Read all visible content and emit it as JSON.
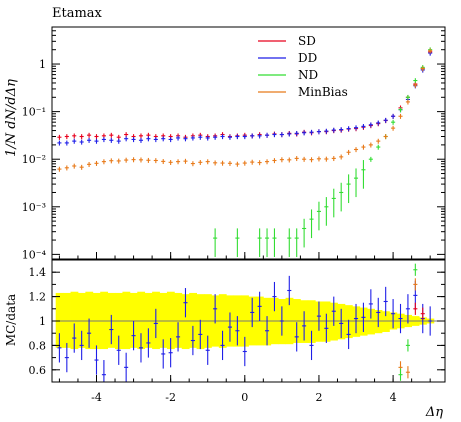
{
  "chart_data": {
    "type": "scatter",
    "title": "Etamax",
    "xlabel": "Δη",
    "ylabel": "1/N dN/dΔη",
    "ratio_ylabel": "MC/data",
    "xlim": [
      -5.2,
      5.4
    ],
    "ylim": [
      8e-05,
      6
    ],
    "yscale": "log",
    "ratio_ylim": [
      0.5,
      1.5
    ],
    "x_ticks": [
      -4,
      -2,
      0,
      2,
      4
    ],
    "y_ticks": [
      {
        "value": 0.0001,
        "label": "10⁻⁴"
      },
      {
        "value": 0.001,
        "label": "10⁻³"
      },
      {
        "value": 0.01,
        "label": "10⁻²"
      },
      {
        "value": 0.1,
        "label": "10⁻¹"
      },
      {
        "value": 1,
        "label": "1"
      }
    ],
    "ratio_ticks": [
      {
        "value": 0.6,
        "label": "0.6"
      },
      {
        "value": 0.8,
        "label": "0.8"
      },
      {
        "value": 1.0,
        "label": "1"
      },
      {
        "value": 1.2,
        "label": "1.2"
      },
      {
        "value": 1.4,
        "label": "1.4"
      }
    ],
    "legend_position": "top-right",
    "bin_width": 0.2,
    "x": [
      -5.0,
      -4.8,
      -4.6,
      -4.4,
      -4.2,
      -4.0,
      -3.8,
      -3.6,
      -3.4,
      -3.2,
      -3.0,
      -2.8,
      -2.6,
      -2.4,
      -2.2,
      -2.0,
      -1.8,
      -1.6,
      -1.4,
      -1.2,
      -1.0,
      -0.8,
      -0.6,
      -0.4,
      -0.2,
      0.0,
      0.2,
      0.4,
      0.6,
      0.8,
      1.0,
      1.2,
      1.4,
      1.6,
      1.8,
      2.0,
      2.2,
      2.4,
      2.6,
      2.8,
      3.0,
      3.2,
      3.4,
      3.6,
      3.8,
      4.0,
      4.2,
      4.4,
      4.6,
      4.8,
      5.0
    ],
    "series": [
      {
        "name": "SD",
        "color": "#e8001c",
        "values": [
          0.029,
          0.03,
          0.031,
          0.03,
          0.032,
          0.03,
          0.031,
          0.032,
          0.029,
          0.033,
          0.03,
          0.031,
          0.032,
          0.03,
          0.031,
          0.03,
          0.031,
          0.029,
          0.031,
          0.032,
          0.03,
          0.031,
          0.033,
          0.03,
          0.031,
          0.032,
          0.031,
          0.033,
          0.032,
          0.034,
          0.033,
          0.035,
          0.034,
          0.037,
          0.036,
          0.038,
          0.038,
          0.04,
          0.041,
          0.043,
          0.044,
          0.047,
          0.051,
          0.056,
          0.065,
          0.08,
          0.12,
          0.2,
          0.38,
          0.8,
          1.8
        ],
        "ratio": null
      },
      {
        "name": "DD",
        "color": "#1f1fe8",
        "values": [
          0.022,
          0.022,
          0.024,
          0.023,
          0.025,
          0.024,
          0.026,
          0.025,
          0.024,
          0.027,
          0.026,
          0.025,
          0.027,
          0.026,
          0.027,
          0.026,
          0.028,
          0.027,
          0.028,
          0.029,
          0.028,
          0.029,
          0.03,
          0.029,
          0.03,
          0.03,
          0.031,
          0.031,
          0.032,
          0.033,
          0.033,
          0.034,
          0.035,
          0.036,
          0.037,
          0.038,
          0.039,
          0.041,
          0.042,
          0.044,
          0.046,
          0.049,
          0.053,
          0.058,
          0.066,
          0.08,
          0.11,
          0.18,
          0.35,
          0.75,
          1.7
        ],
        "ratio": [
          0.78,
          0.7,
          0.86,
          0.8,
          0.9,
          0.68,
          0.56,
          0.93,
          0.76,
          0.62,
          0.88,
          0.78,
          0.82,
          0.98,
          0.73,
          0.74,
          0.87,
          1.15,
          0.84,
          0.89,
          0.76,
          1.1,
          0.8,
          0.95,
          0.92,
          0.75,
          1.07,
          1.12,
          0.92,
          1.2,
          1.0,
          1.25,
          0.87,
          0.96,
          0.8,
          1.04,
          0.94,
          1.08,
          0.98,
          0.89,
          1.02,
          1.03,
          1.14,
          1.07,
          1.16,
          1.06,
          1.02,
          1.1,
          1.21,
          1.02,
          1.0
        ]
      },
      {
        "name": "ND",
        "color": "#33dd33",
        "values": [
          null,
          null,
          null,
          null,
          null,
          null,
          null,
          null,
          null,
          null,
          null,
          null,
          null,
          null,
          null,
          null,
          null,
          null,
          null,
          null,
          null,
          0.00022,
          null,
          null,
          0.00022,
          null,
          null,
          0.00022,
          0.00022,
          0.00022,
          null,
          0.00022,
          0.00022,
          0.00035,
          0.00055,
          0.0008,
          0.001,
          0.0015,
          0.002,
          0.003,
          0.004,
          0.006,
          0.01,
          0.018,
          0.03,
          0.06,
          0.11,
          0.2,
          0.45,
          0.85,
          2.0
        ],
        "ratio": null
      },
      {
        "name": "MinBias",
        "color": "#e87a1a",
        "values": [
          0.0062,
          0.0066,
          0.0072,
          0.0068,
          0.0078,
          0.0082,
          0.0089,
          0.0093,
          0.0092,
          0.0096,
          0.0098,
          0.0097,
          0.0095,
          0.0094,
          0.009,
          0.0086,
          0.0089,
          0.0091,
          0.0081,
          0.0086,
          0.0089,
          0.0084,
          0.0083,
          0.0082,
          0.0079,
          0.0083,
          0.0087,
          0.0085,
          0.0089,
          0.0094,
          0.0098,
          0.0097,
          0.0104,
          0.01,
          0.0098,
          0.0102,
          0.0101,
          0.0104,
          0.0112,
          0.014,
          0.016,
          0.018,
          0.02,
          0.024,
          0.03,
          0.045,
          0.08,
          0.16,
          0.36,
          0.8,
          1.9
        ],
        "ratio": null
      }
    ],
    "data_band": {
      "color": "#ffff00",
      "lower": [
        0.78,
        0.78,
        0.77,
        0.78,
        0.77,
        0.77,
        0.77,
        0.78,
        0.77,
        0.77,
        0.78,
        0.77,
        0.78,
        0.77,
        0.78,
        0.77,
        0.78,
        0.77,
        0.78,
        0.77,
        0.78,
        0.79,
        0.78,
        0.79,
        0.79,
        0.79,
        0.8,
        0.8,
        0.8,
        0.81,
        0.81,
        0.81,
        0.82,
        0.82,
        0.82,
        0.83,
        0.83,
        0.84,
        0.85,
        0.86,
        0.87,
        0.88,
        0.89,
        0.9,
        0.91,
        0.93,
        0.94,
        0.95,
        0.96,
        0.97,
        0.98
      ],
      "upper": [
        1.23,
        1.23,
        1.24,
        1.23,
        1.24,
        1.23,
        1.24,
        1.23,
        1.23,
        1.24,
        1.23,
        1.24,
        1.23,
        1.24,
        1.23,
        1.24,
        1.23,
        1.22,
        1.23,
        1.22,
        1.22,
        1.21,
        1.22,
        1.21,
        1.21,
        1.21,
        1.2,
        1.2,
        1.19,
        1.19,
        1.18,
        1.19,
        1.18,
        1.17,
        1.17,
        1.16,
        1.16,
        1.15,
        1.14,
        1.13,
        1.12,
        1.11,
        1.1,
        1.09,
        1.08,
        1.07,
        1.06,
        1.05,
        1.04,
        1.03,
        1.02
      ]
    }
  }
}
